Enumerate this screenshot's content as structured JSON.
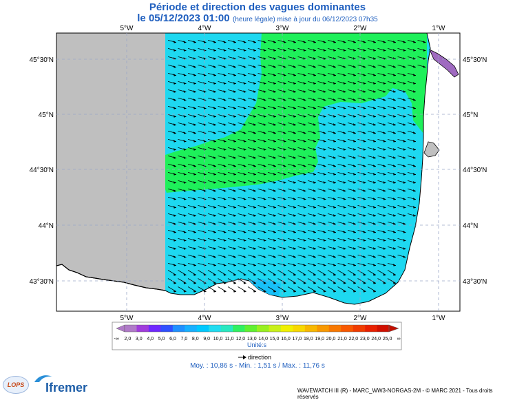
{
  "title": "Période et direction des vagues dominantes",
  "subtitle": {
    "date": "le 05/12/2023 01:00",
    "note": "(heure légale) mise à jour du 06/12/2023 07h35"
  },
  "longitude_labels": [
    "5°W",
    "4°W",
    "3°W",
    "2°W",
    "1°W"
  ],
  "latitude_labels": [
    "45°30'N",
    "45°N",
    "44°30'N",
    "44°N",
    "43°30'N"
  ],
  "colorbar": {
    "ticks": [
      "-∞",
      "2,0",
      "3,0",
      "4,0",
      "5,0",
      "6,0",
      "7,0",
      "8,0",
      "9,0",
      "10,0",
      "11,0",
      "12,0",
      "13,0",
      "14,0",
      "15,0",
      "16,0",
      "17,0",
      "18,0",
      "19,0",
      "20,0",
      "21,0",
      "22,0",
      "23,0",
      "24,0",
      "25,0",
      "∞"
    ],
    "colors": [
      "#b07ac8",
      "#a03cdc",
      "#7028ff",
      "#3050ff",
      "#2090ff",
      "#18b0ff",
      "#00c8ff",
      "#20dcf0",
      "#28e8c0",
      "#30f060",
      "#60f030",
      "#98f020",
      "#c8f018",
      "#f0f000",
      "#f8d800",
      "#f8b800",
      "#f89800",
      "#f87800",
      "#f85800",
      "#f03c00",
      "#e82000",
      "#d01000"
    ],
    "unit": "Unité:s"
  },
  "direction_key": "direction",
  "stats": "Moy. : 10,86 s   -   Min. : 1,51 s / Max. : 11,76 s",
  "footer": "WAVEWATCH III (R) - MARC_WW3-NORGAS-2M - © MARC 2021 - Tous droits réservés",
  "logos": {
    "lops": "LOPS",
    "ifremer": "Ifremer"
  },
  "map_colors": {
    "no_data": "#bfbfbf",
    "period_10_11": "#1ed8f0",
    "period_11_12": "#1ef05a",
    "period_under_3": "#9f6ac0",
    "land": "#ffffff"
  }
}
